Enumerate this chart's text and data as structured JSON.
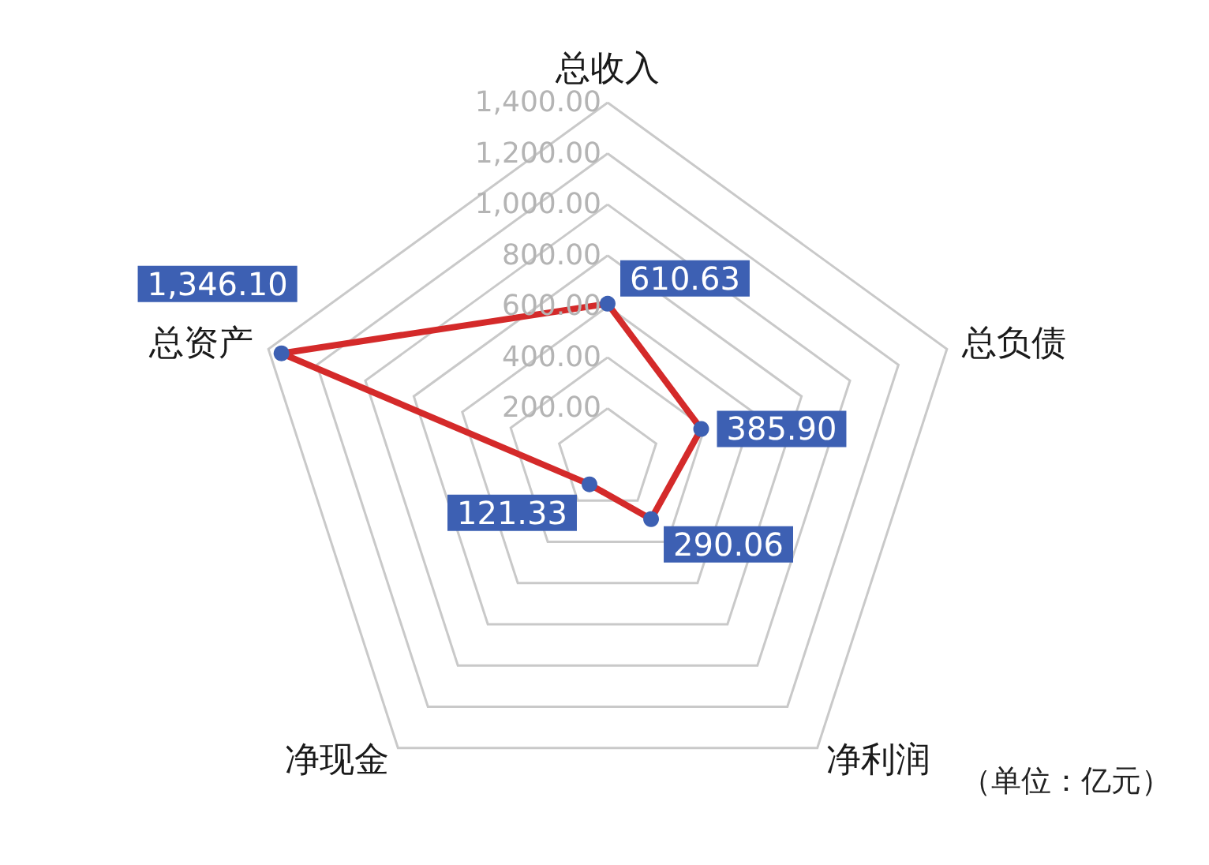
{
  "chart_data": {
    "type": "radar",
    "categories": [
      "总收入",
      "总负债",
      "净利润",
      "净现金",
      "总资产"
    ],
    "series": [
      {
        "color": "#d42a2a",
        "values": [
          610.63,
          385.9,
          290.06,
          121.33,
          1346.1
        ],
        "value_labels": [
          "610.63",
          "385.90",
          "290.06",
          "121.33",
          "1,346.10"
        ]
      }
    ],
    "ylim": [
      0,
      1400
    ],
    "yticks": [
      {
        "value": 200,
        "label": "200.00"
      },
      {
        "value": 400,
        "label": "400.00"
      },
      {
        "value": 600,
        "label": "600.00"
      },
      {
        "value": 800,
        "label": "800.00"
      },
      {
        "value": 1000,
        "label": "1,000.00"
      },
      {
        "value": 1200,
        "label": "1,200.00"
      },
      {
        "value": 1400,
        "label": "1,400.00"
      }
    ],
    "grid": true,
    "marker": "circle",
    "annotations": [
      "（单位：亿元）"
    ]
  }
}
